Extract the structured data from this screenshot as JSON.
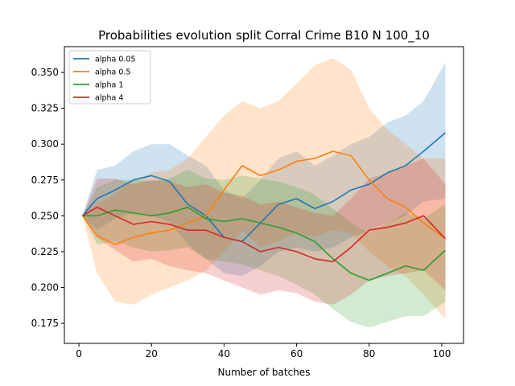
{
  "chart_data": {
    "type": "line",
    "title": "Probabilities evolution split Corral Crime B10 N 100_10",
    "xlabel": "Number of batches",
    "ylabel": "",
    "xlim": [
      -4,
      106
    ],
    "ylim": [
      0.161,
      0.368
    ],
    "xticks": [
      0,
      20,
      40,
      60,
      80,
      100
    ],
    "yticks": [
      0.175,
      0.2,
      0.225,
      0.25,
      0.275,
      0.3,
      0.325,
      0.35
    ],
    "ytick_labels": [
      "0.175",
      "0.200",
      "0.225",
      "0.250",
      "0.275",
      "0.300",
      "0.325",
      "0.350"
    ],
    "grid": false,
    "legend_position": "top-left",
    "series": [
      {
        "name": "alpha 0.05",
        "color": "#1f77b4",
        "x": [
          1,
          5,
          10,
          15,
          20,
          25,
          30,
          35,
          40,
          45,
          50,
          55,
          60,
          65,
          70,
          75,
          80,
          85,
          90,
          95,
          101
        ],
        "values": [
          0.25,
          0.262,
          0.268,
          0.275,
          0.278,
          0.274,
          0.258,
          0.25,
          0.235,
          0.232,
          0.245,
          0.258,
          0.262,
          0.255,
          0.26,
          0.268,
          0.272,
          0.28,
          0.285,
          0.295,
          0.308
        ],
        "lower": [
          0.25,
          0.24,
          0.248,
          0.252,
          0.25,
          0.246,
          0.23,
          0.22,
          0.21,
          0.208,
          0.215,
          0.225,
          0.228,
          0.225,
          0.228,
          0.235,
          0.24,
          0.245,
          0.25,
          0.26,
          0.262
        ],
        "upper": [
          0.25,
          0.282,
          0.285,
          0.295,
          0.3,
          0.3,
          0.292,
          0.285,
          0.268,
          0.262,
          0.275,
          0.29,
          0.295,
          0.285,
          0.292,
          0.3,
          0.305,
          0.315,
          0.32,
          0.33,
          0.357
        ]
      },
      {
        "name": "alpha 0.5",
        "color": "#ff7f0e",
        "x": [
          1,
          5,
          10,
          15,
          20,
          25,
          30,
          35,
          40,
          45,
          50,
          55,
          60,
          65,
          70,
          75,
          80,
          85,
          90,
          95,
          101
        ],
        "values": [
          0.25,
          0.236,
          0.23,
          0.235,
          0.238,
          0.24,
          0.245,
          0.25,
          0.268,
          0.285,
          0.278,
          0.282,
          0.288,
          0.29,
          0.295,
          0.292,
          0.275,
          0.262,
          0.256,
          0.245,
          0.234
        ],
        "lower": [
          0.25,
          0.21,
          0.19,
          0.188,
          0.195,
          0.2,
          0.205,
          0.212,
          0.225,
          0.24,
          0.228,
          0.232,
          0.238,
          0.235,
          0.24,
          0.238,
          0.225,
          0.215,
          0.208,
          0.195,
          0.178
        ],
        "upper": [
          0.25,
          0.258,
          0.265,
          0.275,
          0.28,
          0.282,
          0.29,
          0.305,
          0.32,
          0.33,
          0.325,
          0.33,
          0.342,
          0.355,
          0.36,
          0.352,
          0.325,
          0.31,
          0.3,
          0.29,
          0.29
        ]
      },
      {
        "name": "alpha 1",
        "color": "#2ca02c",
        "x": [
          1,
          5,
          10,
          15,
          20,
          25,
          30,
          35,
          40,
          45,
          50,
          55,
          60,
          65,
          70,
          75,
          80,
          85,
          90,
          95,
          101
        ],
        "values": [
          0.25,
          0.25,
          0.254,
          0.252,
          0.25,
          0.252,
          0.256,
          0.248,
          0.246,
          0.248,
          0.245,
          0.242,
          0.238,
          0.232,
          0.22,
          0.21,
          0.205,
          0.21,
          0.215,
          0.212,
          0.226
        ],
        "lower": [
          0.25,
          0.23,
          0.232,
          0.228,
          0.225,
          0.226,
          0.228,
          0.22,
          0.218,
          0.216,
          0.212,
          0.208,
          0.202,
          0.195,
          0.185,
          0.176,
          0.172,
          0.176,
          0.18,
          0.18,
          0.19
        ],
        "upper": [
          0.25,
          0.27,
          0.275,
          0.275,
          0.274,
          0.276,
          0.282,
          0.276,
          0.275,
          0.278,
          0.276,
          0.274,
          0.27,
          0.265,
          0.255,
          0.245,
          0.238,
          0.245,
          0.252,
          0.248,
          0.258
        ]
      },
      {
        "name": "alpha 4",
        "color": "#d62728",
        "x": [
          1,
          5,
          10,
          15,
          20,
          25,
          30,
          35,
          40,
          45,
          50,
          55,
          60,
          65,
          70,
          75,
          80,
          85,
          90,
          95,
          101
        ],
        "values": [
          0.25,
          0.256,
          0.25,
          0.244,
          0.246,
          0.244,
          0.24,
          0.24,
          0.235,
          0.232,
          0.225,
          0.228,
          0.225,
          0.22,
          0.218,
          0.228,
          0.24,
          0.242,
          0.245,
          0.25,
          0.234
        ],
        "lower": [
          0.25,
          0.235,
          0.226,
          0.218,
          0.22,
          0.215,
          0.212,
          0.21,
          0.205,
          0.2,
          0.195,
          0.198,
          0.196,
          0.19,
          0.188,
          0.195,
          0.205,
          0.208,
          0.21,
          0.212,
          0.198
        ],
        "upper": [
          0.25,
          0.276,
          0.276,
          0.272,
          0.275,
          0.274,
          0.27,
          0.272,
          0.266,
          0.264,
          0.258,
          0.26,
          0.256,
          0.252,
          0.25,
          0.262,
          0.276,
          0.28,
          0.285,
          0.29,
          0.272
        ]
      }
    ]
  }
}
